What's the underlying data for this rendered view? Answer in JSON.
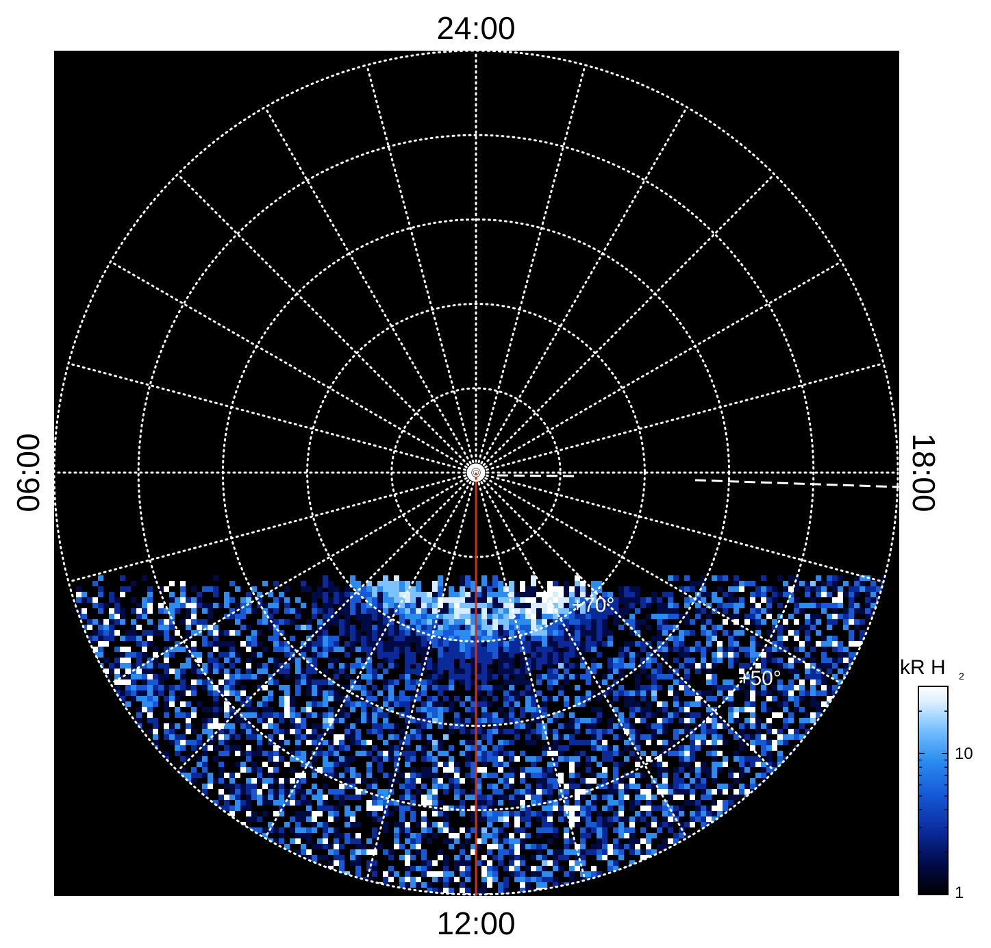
{
  "projection": {
    "type": "polar",
    "hemisphere": "north",
    "outer_latitude": 40,
    "latitude_circles": [
      50,
      60,
      70,
      80,
      90
    ],
    "meridian_spacing_hours": 1
  },
  "local_time_labels": {
    "top": "24:00",
    "bottom": "12:00",
    "left": "06:00",
    "right": "18:00"
  },
  "latitude_labels": [
    {
      "text": "+70°",
      "lat": 70,
      "lt_hour": 14.3
    },
    {
      "text": "+50°",
      "lat": 50,
      "lt_hour": 15.4
    }
  ],
  "colorbar": {
    "title": "kR H",
    "subscript": "2",
    "scale": "log",
    "range": [
      1,
      30
    ],
    "tick_labels": [
      {
        "text": "10",
        "value": 10
      },
      {
        "text": "1",
        "value": 1
      }
    ],
    "colors": [
      "#000000",
      "#000a44",
      "#0a2a99",
      "#1659d6",
      "#2a8cf0",
      "#7cc2ff",
      "#d8eeff",
      "#ffffff"
    ]
  },
  "emission": {
    "coverage_boundary_lat": 56,
    "oval_lat": 74,
    "bright_region_lt": [
      13.3,
      15.6
    ],
    "gap_lat": 80
  },
  "overlays": {
    "noon_meridian_color": "#d03010",
    "dashed_line_color": "#ffffff",
    "grid_color": "#ffffff"
  }
}
